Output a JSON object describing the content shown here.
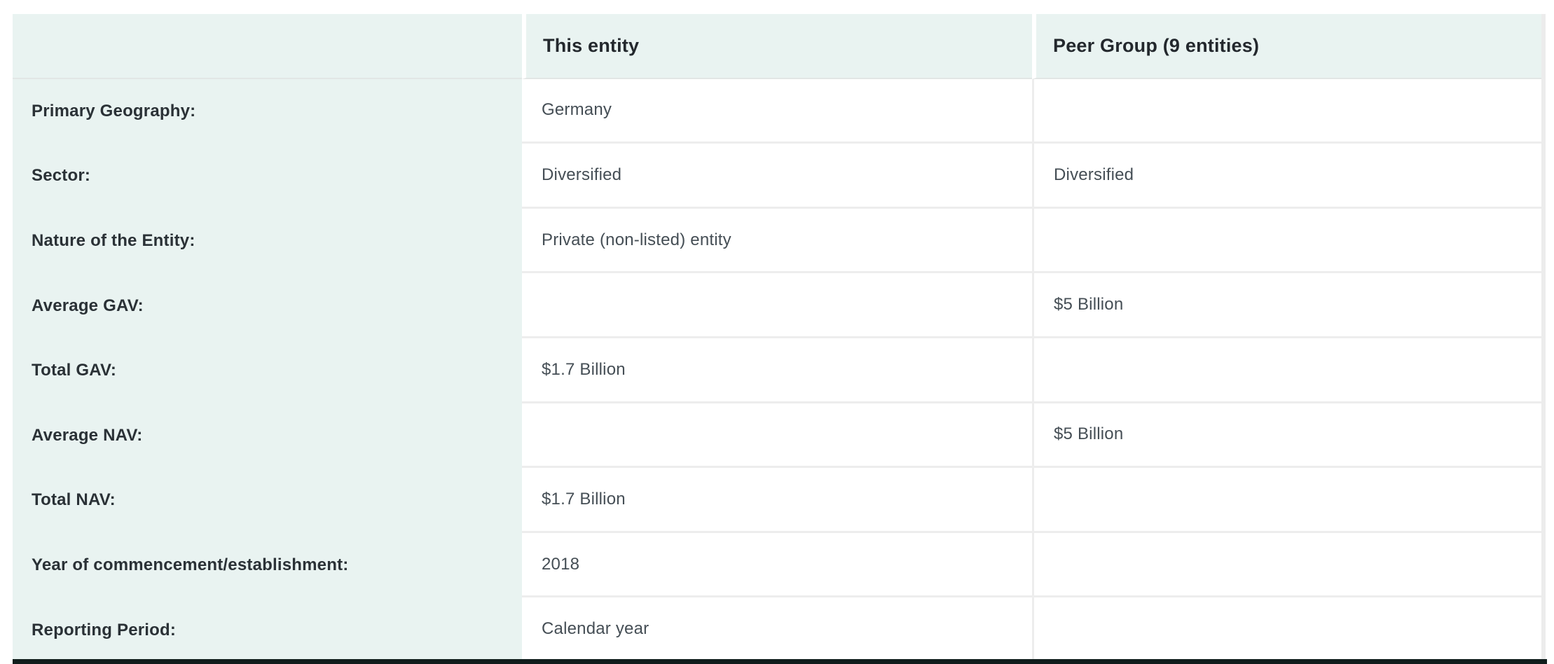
{
  "table": {
    "columns": [
      {
        "label": ""
      },
      {
        "label": "This entity"
      },
      {
        "label": "Peer Group (9 entities)"
      }
    ],
    "rows": [
      {
        "label": "Primary Geography:",
        "this_entity": "Germany",
        "peer_group": ""
      },
      {
        "label": "Sector:",
        "this_entity": "Diversified",
        "peer_group": "Diversified"
      },
      {
        "label": "Nature of the Entity:",
        "this_entity": "Private (non-listed) entity",
        "peer_group": ""
      },
      {
        "label": "Average GAV:",
        "this_entity": "",
        "peer_group": "$5 Billion"
      },
      {
        "label": "Total GAV:",
        "this_entity": "$1.7 Billion",
        "peer_group": ""
      },
      {
        "label": "Average NAV:",
        "this_entity": "",
        "peer_group": "$5 Billion"
      },
      {
        "label": "Total NAV:",
        "this_entity": "$1.7 Billion",
        "peer_group": ""
      },
      {
        "label": "Year of commencement/establishment:",
        "this_entity": "2018",
        "peer_group": ""
      },
      {
        "label": "Reporting Period:",
        "this_entity": "Calendar year",
        "peer_group": ""
      }
    ],
    "colors": {
      "tint": "#e9f3f1",
      "row_separator": "#ededed",
      "header_rule": "#e2e6e5",
      "dark_bar": "#101d1c",
      "header_text": "#23282d",
      "label_text": "#2a3136",
      "value_text": "#454e55"
    }
  }
}
